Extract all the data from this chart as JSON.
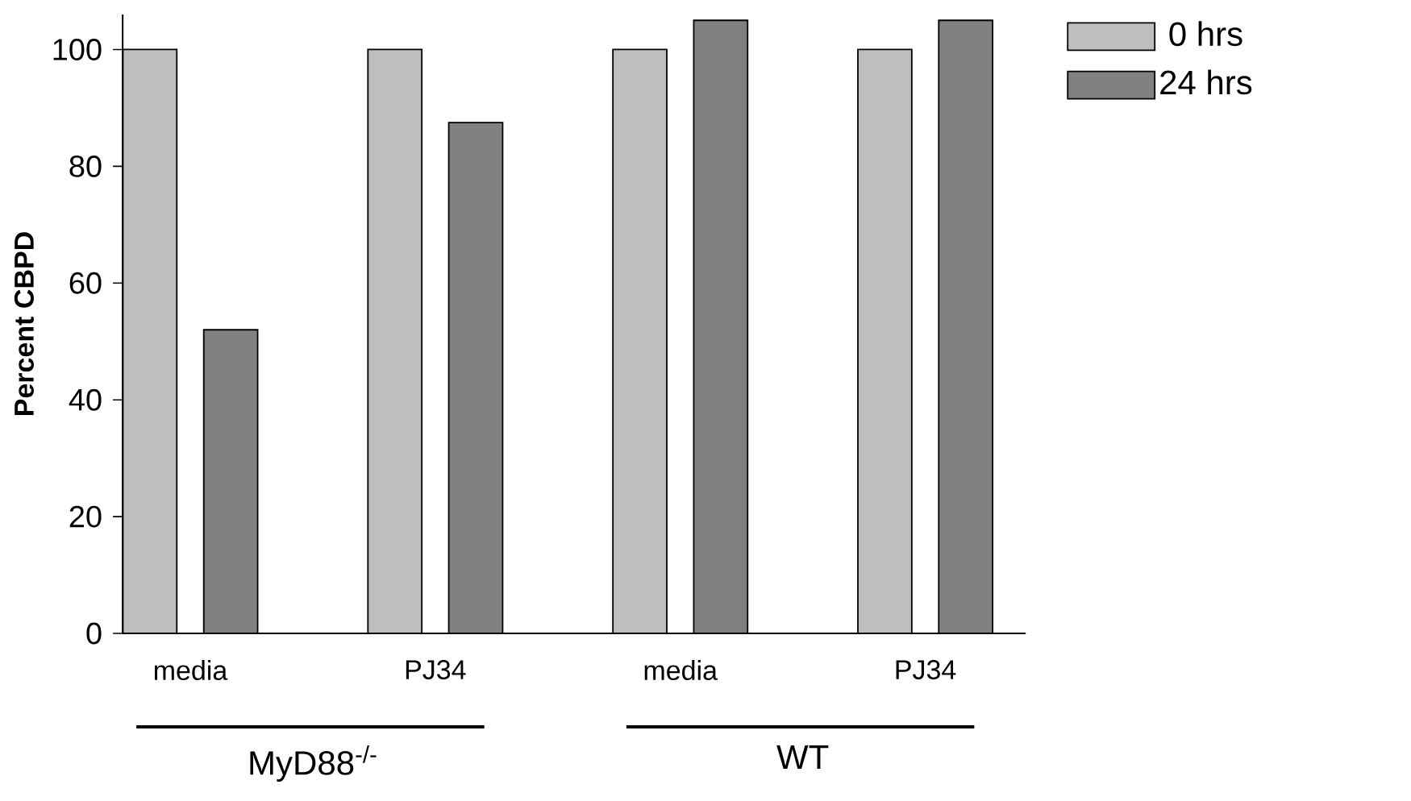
{
  "chart_data": {
    "type": "bar",
    "ylabel": "Percent CBPD",
    "categories": [
      "media",
      "PJ34",
      "media",
      "PJ34"
    ],
    "series": [
      {
        "name": "0 hrs",
        "color": "#bebebe",
        "values": [
          100,
          100,
          100,
          100
        ]
      },
      {
        "name": "24 hrs",
        "color": "#808080",
        "values": [
          52,
          87.5,
          105,
          105
        ]
      }
    ],
    "ylim": [
      0,
      106
    ],
    "yticks": [
      0,
      20,
      40,
      60,
      80,
      100
    ],
    "legend": "top right",
    "annotations": [
      "MyD88$^{-/-}$",
      "WT"
    ]
  }
}
